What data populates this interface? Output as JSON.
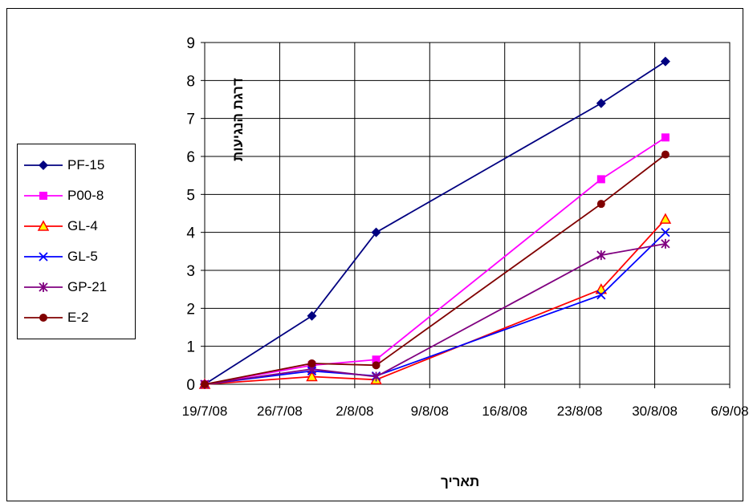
{
  "chart_data": {
    "type": "line",
    "title": "",
    "xlabel": "תאריך",
    "ylabel": "דרגת הנגיעות",
    "x_ticks": [
      "19/7/08",
      "26/7/08",
      "2/8/08",
      "9/8/08",
      "16/8/08",
      "23/8/08",
      "30/8/08",
      "6/9/08"
    ],
    "xlim": [
      "19/7/08",
      "6/9/08"
    ],
    "ylim": [
      0,
      9
    ],
    "y_ticks": [
      0,
      1,
      2,
      3,
      4,
      5,
      6,
      7,
      8,
      9
    ],
    "grid": true,
    "legend_position": "left",
    "x": [
      "19/7/08",
      "29/7/08",
      "4/8/08",
      "25/8/08",
      "31/8/08"
    ],
    "series": [
      {
        "name": "PF-15",
        "color": "#000080",
        "marker": "diamond",
        "values": [
          0,
          1.8,
          4.0,
          7.4,
          8.5
        ]
      },
      {
        "name": "P00-8",
        "color": "#ff00ff",
        "marker": "square",
        "values": [
          0,
          0.5,
          0.65,
          5.4,
          6.5
        ]
      },
      {
        "name": "GL-4",
        "color": "#ff0000",
        "marker": "triangle",
        "values": [
          0,
          0.2,
          0.12,
          2.5,
          4.35
        ]
      },
      {
        "name": "GL-5",
        "color": "#0000ff",
        "marker": "x",
        "values": [
          0,
          0.35,
          0.22,
          2.35,
          4.0
        ]
      },
      {
        "name": "GP-21",
        "color": "#800080",
        "marker": "star",
        "values": [
          0,
          0.4,
          0.2,
          3.4,
          3.7
        ]
      },
      {
        "name": "E-2",
        "color": "#800000",
        "marker": "circle",
        "values": [
          0,
          0.55,
          0.5,
          4.75,
          6.05
        ]
      }
    ]
  }
}
